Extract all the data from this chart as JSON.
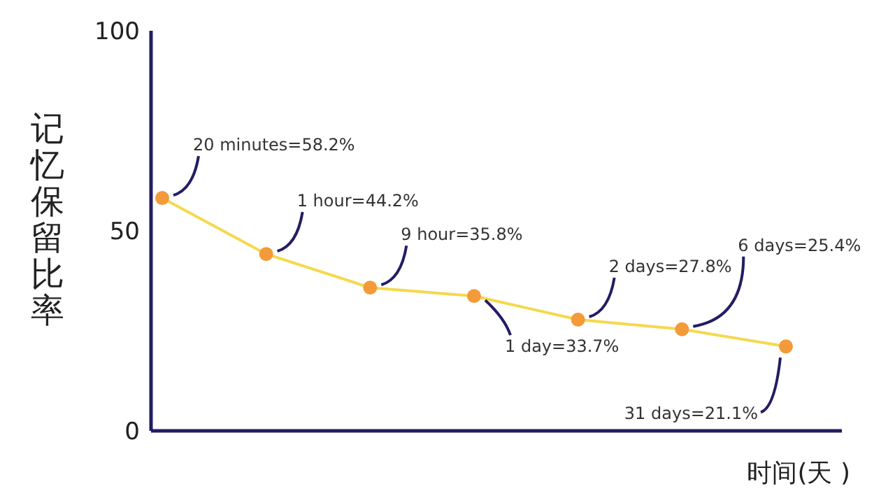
{
  "chart_data": {
    "type": "line",
    "xlabel": "时间(天 )",
    "ylabel": "记忆保留比率",
    "categories": [
      null,
      null,
      null,
      null,
      null,
      null,
      null
    ],
    "series": [
      {
        "color": "#f5d84e",
        "colors": [
          "#f39a3a",
          "#f39a3a",
          "#f39a3a",
          "#f39a3a",
          "#f39a3a",
          "#f39a3a",
          "#f39a3a"
        ],
        "values": [
          58.2,
          44.2,
          35.8,
          33.7,
          27.8,
          25.4,
          21.1
        ],
        "value_labels": [
          "20 minutes=58.2%",
          "1 hour=44.2%",
          "9 hour=35.8%",
          "1 day=33.7%",
          "2 days=27.8%",
          "6 days=25.4%",
          "31 days=21.1%"
        ]
      }
    ],
    "ylim": [
      0,
      100
    ],
    "yticks": [
      0,
      50,
      100
    ],
    "marker": "circle",
    "line_style": "solid"
  }
}
